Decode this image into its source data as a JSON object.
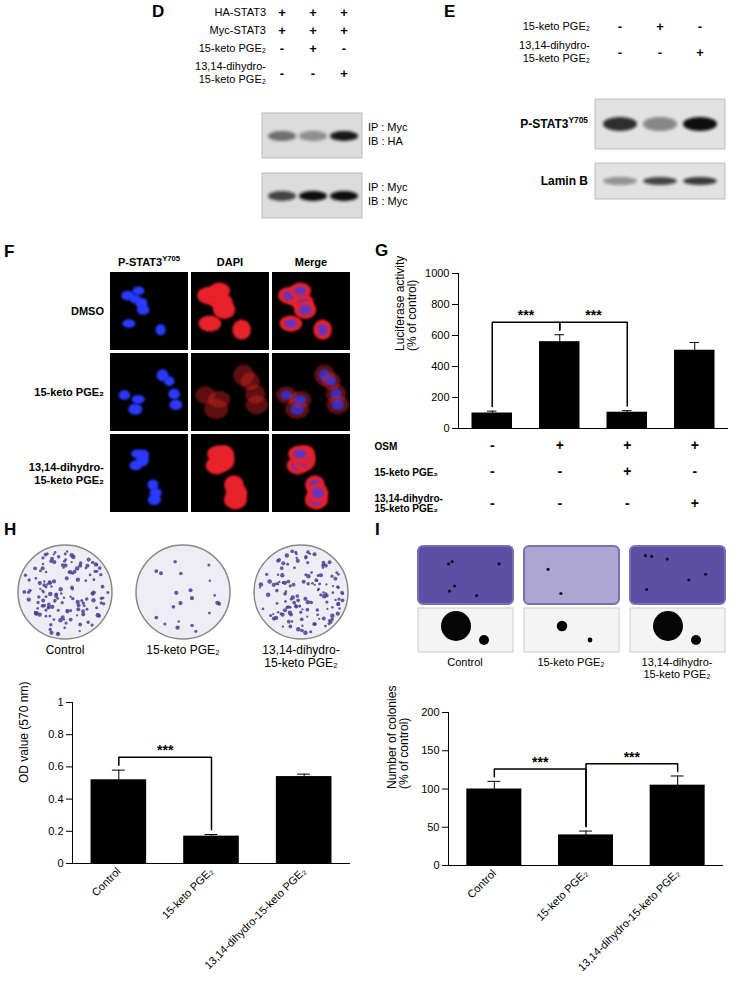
{
  "panels": {
    "D": {
      "letter": "D",
      "conditions": [
        {
          "label": "HA-STAT3",
          "marks": [
            "+",
            "+",
            "+"
          ]
        },
        {
          "label": "Myc-STAT3",
          "marks": [
            "+",
            "+",
            "+"
          ]
        },
        {
          "label": "15-keto PGE₂",
          "marks": [
            "-",
            "+",
            "-"
          ]
        },
        {
          "label": "13,14-dihydro-15-keto PGE₂",
          "marks": [
            "-",
            "-",
            "+"
          ]
        }
      ],
      "blots": [
        {
          "labels": [
            "IP : Myc",
            "IB : HA"
          ],
          "band_intensity": [
            0.55,
            0.4,
            0.95
          ]
        },
        {
          "labels": [
            "IP : Myc",
            "IB : Myc"
          ],
          "band_intensity": [
            0.75,
            1,
            1
          ]
        }
      ]
    },
    "E": {
      "letter": "E",
      "conditions": [
        {
          "label": "15-keto PGE₂",
          "marks": [
            "-",
            "+",
            "-"
          ]
        },
        {
          "label": "13,14-dihydro-15-keto PGE₂",
          "marks": [
            "-",
            "-",
            "+"
          ]
        }
      ],
      "blots": [
        {
          "label": "P-STAT3",
          "superscript": "Y705",
          "band_intensity": [
            0.85,
            0.45,
            1
          ]
        },
        {
          "label": "Lamin B",
          "band_intensity": [
            0.4,
            0.75,
            0.8
          ]
        }
      ]
    },
    "F": {
      "letter": "F",
      "columns": [
        {
          "label": "P-STAT3",
          "superscript": "Y705"
        },
        {
          "label": "DAPI"
        },
        {
          "label": "Merge"
        }
      ],
      "rows": [
        {
          "label": "DMSO",
          "signal": 1
        },
        {
          "label": "15-keto PGE₂",
          "signal": 0.4
        },
        {
          "label": "13,14-dihydro-15-keto PGE₂",
          "signal": 1
        }
      ]
    },
    "H": {
      "dishes": [
        {
          "label": "Control",
          "density": 1
        },
        {
          "label": "15-keto PGE₂",
          "density": 0.15
        },
        {
          "label": "13,14-dihydro-15-keto PGE₂",
          "density": 1
        }
      ]
    },
    "I": {
      "wells": [
        {
          "label": "Control",
          "density": 1,
          "colony_size": 1
        },
        {
          "label": "15-keto PGE₂",
          "density": 0.3,
          "colony_size": 0.35
        },
        {
          "label": "13,14-dihydro-15-keto PGE₂",
          "density": 1,
          "colony_size": 1
        }
      ]
    }
  },
  "chart_data": [
    {
      "type": "bar",
      "title": "G",
      "categories": [
        null,
        null,
        null,
        null
      ],
      "values": [
        100,
        560,
        105,
        505
      ],
      "errors": [
        12,
        45,
        10,
        50
      ],
      "color": "#000000",
      "ylabel": "Luciferase activity (% of control)",
      "ylim": [
        0,
        1000
      ],
      "yticks": [
        0,
        200,
        400,
        600,
        800,
        1000
      ],
      "tick_labels": "y",
      "conditions": [
        {
          "label": "OSM",
          "marks": [
            "-",
            "+",
            "+",
            "+"
          ]
        },
        {
          "label": "15-keto PGE₂",
          "marks": [
            "-",
            "-",
            "+",
            "-"
          ]
        },
        {
          "label": "13,14-dihydro-15-keto PGE₂",
          "marks": [
            "-",
            "-",
            "-",
            "+"
          ]
        }
      ],
      "significance": [
        {
          "between": [
            0,
            1
          ],
          "label": "***"
        },
        {
          "between": [
            1,
            2
          ],
          "label": "***"
        }
      ]
    },
    {
      "type": "bar",
      "title": "H",
      "categories": [
        "Control",
        "15-keto PGE₂",
        "13,14-dihydro-15-keto PGE₂"
      ],
      "values": [
        0.52,
        0.17,
        0.54
      ],
      "errors": [
        0.06,
        0.01,
        0.015
      ],
      "color": "#000000",
      "ylabel": "OD value (570 nm)",
      "ylim": [
        0,
        1
      ],
      "yticks": [
        0,
        0.2,
        0.4,
        0.6,
        0.8,
        1
      ],
      "significance": [
        {
          "between": [
            0,
            1
          ],
          "label": "***"
        }
      ]
    },
    {
      "type": "bar",
      "title": "I",
      "categories": [
        "Control",
        "15-keto PGE₂",
        "13,14-dihydro-15-keto PGE₂"
      ],
      "values": [
        100,
        40,
        105
      ],
      "errors": [
        10,
        5,
        12
      ],
      "color": "#000000",
      "ylabel": "Number of colonies (% of control)",
      "ylim": [
        0,
        200
      ],
      "yticks": [
        0,
        50,
        100,
        150,
        200
      ],
      "significance": [
        {
          "between": [
            0,
            1
          ],
          "label": "***"
        },
        {
          "between": [
            1,
            2
          ],
          "label": "***"
        }
      ]
    }
  ]
}
